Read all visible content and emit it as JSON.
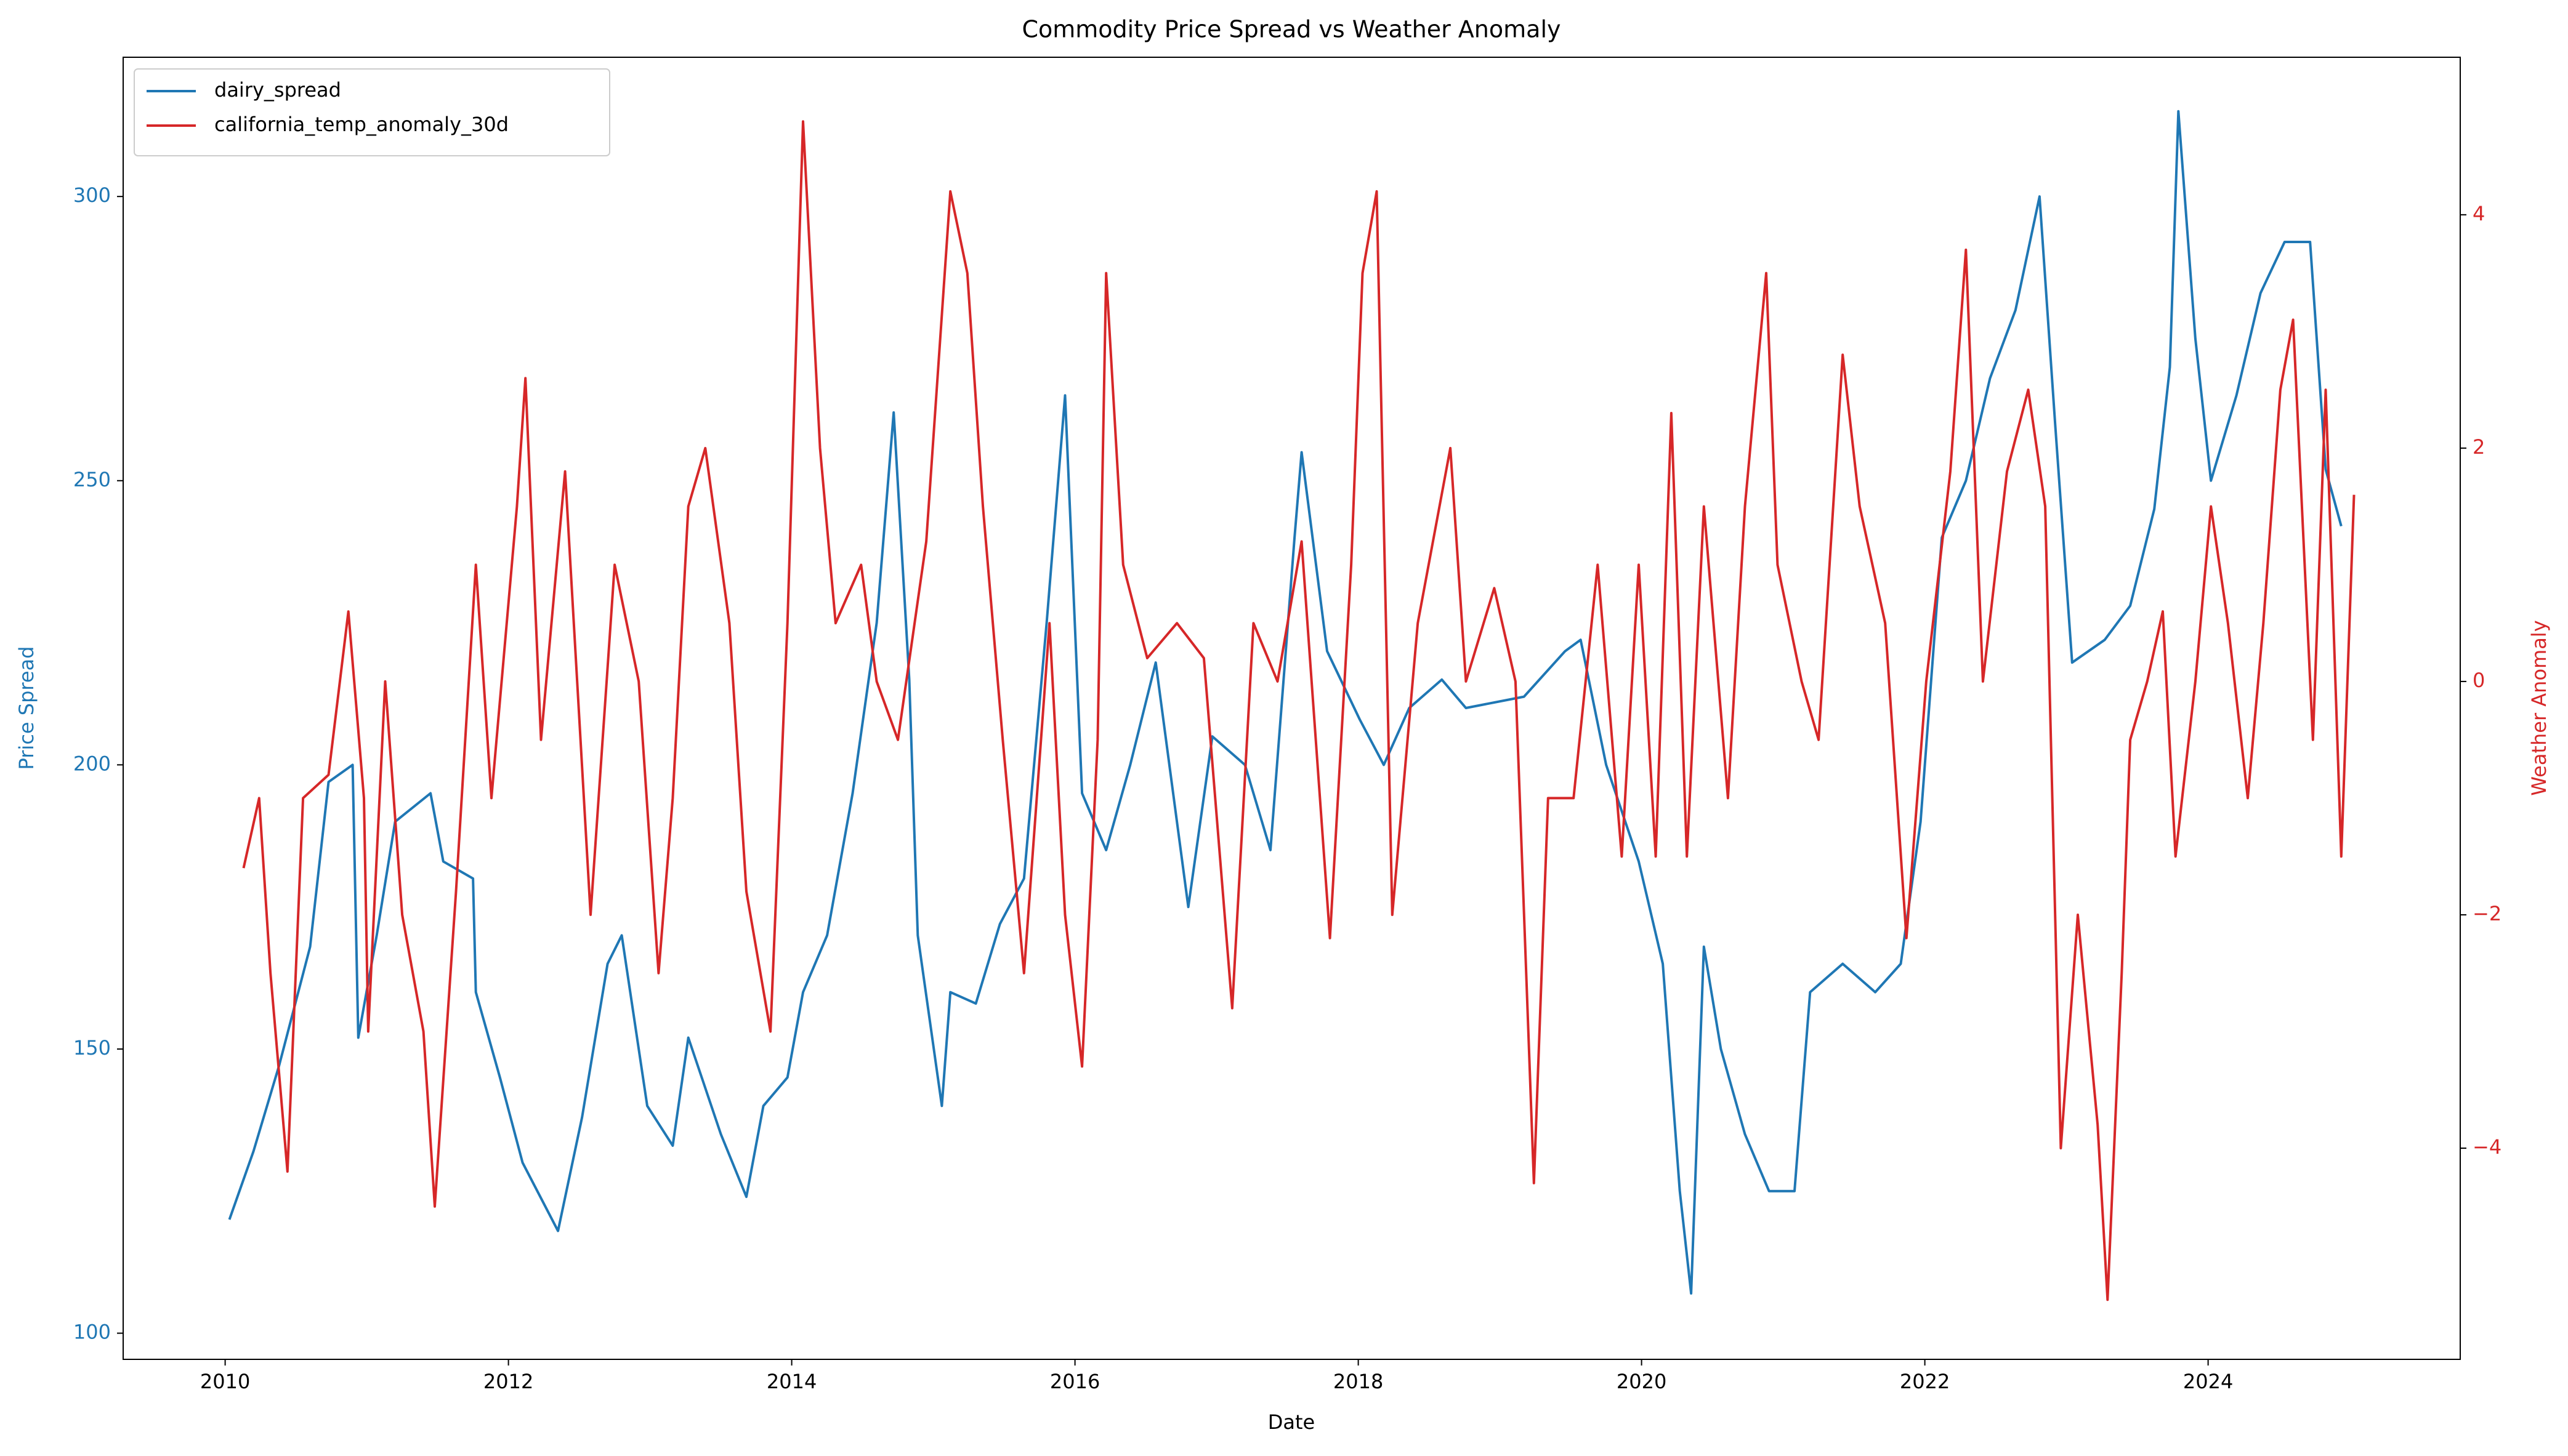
{
  "chart_data": {
    "type": "line",
    "title": "Commodity Price Spread vs Weather Anomaly",
    "x_label": "Date",
    "y_label": "Price Spread",
    "y2_label": "Weather Anomaly",
    "xlim": [
      2009.28,
      2025.78
    ],
    "xticks": [
      2010,
      2012,
      2014,
      2016,
      2018,
      2020,
      2022,
      2024
    ],
    "ylim": [
      95.4,
      324.5
    ],
    "yticks": [
      100,
      150,
      200,
      250,
      300
    ],
    "y2lim": [
      -5.81,
      5.35
    ],
    "y2ticks": [
      {
        "value": -4,
        "label": "−4"
      },
      {
        "value": -2,
        "label": "−2"
      },
      0,
      2,
      4
    ],
    "legend": "upper left",
    "grid": false,
    "series": [
      {
        "name": "dairy_spread",
        "color": "#1f77b4",
        "x": [
          2010.03,
          2010.2,
          2010.38,
          2010.6,
          2010.73,
          2010.9,
          2010.94,
          2011.07,
          2011.2,
          2011.45,
          2011.54,
          2011.75,
          2011.77,
          2011.94,
          2012.1,
          2012.35,
          2012.52,
          2012.7,
          2012.8,
          2012.98,
          2013.16,
          2013.27,
          2013.5,
          2013.68,
          2013.8,
          2013.97,
          2014.08,
          2014.25,
          2014.43,
          2014.6,
          2014.72,
          2014.83,
          2014.89,
          2015.06,
          2015.12,
          2015.3,
          2015.47,
          2015.64,
          2015.8,
          2015.93,
          2016.05,
          2016.22,
          2016.39,
          2016.57,
          2016.8,
          2016.97,
          2017.2,
          2017.38,
          2017.55,
          2017.6,
          2017.78,
          2018.01,
          2018.18,
          2018.36,
          2018.59,
          2018.76,
          2019.17,
          2019.46,
          2019.57,
          2019.75,
          2019.98,
          2020.15,
          2020.27,
          2020.35,
          2020.44,
          2020.56,
          2020.73,
          2020.9,
          2021.08,
          2021.19,
          2021.42,
          2021.65,
          2021.83,
          2021.97,
          2022.12,
          2022.29,
          2022.46,
          2022.64,
          2022.81,
          2022.92,
          2023.04,
          2023.27,
          2023.45,
          2023.62,
          2023.73,
          2023.79,
          2023.91,
          2024.02,
          2024.2,
          2024.37,
          2024.54,
          2024.72,
          2024.83,
          2024.94
        ],
        "values": [
          120,
          132,
          147,
          168,
          197,
          200,
          152,
          170,
          190,
          195,
          183,
          180,
          160,
          145,
          130,
          118,
          138,
          165,
          170,
          140,
          133,
          152,
          135,
          124,
          140,
          145,
          160,
          170,
          195,
          225,
          262,
          215,
          170,
          140,
          160,
          158,
          172,
          180,
          225,
          265,
          195,
          185,
          200,
          218,
          175,
          205,
          200,
          185,
          240,
          255,
          220,
          208,
          200,
          210,
          215,
          210,
          212,
          220,
          222,
          200,
          183,
          165,
          125,
          107,
          168,
          150,
          135,
          125,
          125,
          160,
          165,
          160,
          165,
          190,
          240,
          250,
          268,
          280,
          300,
          260,
          218,
          222,
          228,
          245,
          270,
          315,
          275,
          250,
          265,
          283,
          292,
          292,
          252,
          242
        ]
      },
      {
        "name": "california_temp_anomaly_30d",
        "color": "#d62728",
        "axis": "y2",
        "x": [
          2010.13,
          2010.24,
          2010.32,
          2010.44,
          2010.55,
          2010.73,
          2010.87,
          2010.98,
          2011.01,
          2011.13,
          2011.25,
          2011.4,
          2011.48,
          2011.63,
          2011.77,
          2011.88,
          2012.06,
          2012.12,
          2012.23,
          2012.4,
          2012.58,
          2012.75,
          2012.92,
          2013.06,
          2013.16,
          2013.27,
          2013.39,
          2013.56,
          2013.68,
          2013.85,
          2013.97,
          2014.08,
          2014.2,
          2014.31,
          2014.49,
          2014.6,
          2014.75,
          2014.95,
          2015.12,
          2015.24,
          2015.35,
          2015.49,
          2015.64,
          2015.82,
          2015.93,
          2016.05,
          2016.16,
          2016.22,
          2016.34,
          2016.51,
          2016.72,
          2016.91,
          2017.11,
          2017.26,
          2017.43,
          2017.6,
          2017.8,
          2017.95,
          2018.03,
          2018.13,
          2018.24,
          2018.42,
          2018.65,
          2018.76,
          2018.96,
          2019.11,
          2019.24,
          2019.34,
          2019.52,
          2019.69,
          2019.86,
          2019.98,
          2020.1,
          2020.21,
          2020.32,
          2020.44,
          2020.61,
          2020.73,
          2020.88,
          2020.96,
          2021.13,
          2021.25,
          2021.42,
          2021.54,
          2021.72,
          2021.87,
          2022.01,
          2022.18,
          2022.29,
          2022.41,
          2022.58,
          2022.73,
          2022.85,
          2022.96,
          2023.08,
          2023.22,
          2023.29,
          2023.39,
          2023.45,
          2023.57,
          2023.68,
          2023.77,
          2023.91,
          2024.02,
          2024.14,
          2024.28,
          2024.39,
          2024.51,
          2024.6,
          2024.74,
          2024.83,
          2024.94,
          2025.03
        ],
        "values": [
          -1.6,
          -1.0,
          -2.5,
          -4.2,
          -1.0,
          -0.8,
          0.6,
          -1.0,
          -3.0,
          0.0,
          -2.0,
          -3.0,
          -4.5,
          -1.8,
          1.0,
          -1.0,
          1.5,
          2.6,
          -0.5,
          1.8,
          -2.0,
          1.0,
          0.0,
          -2.5,
          -1.0,
          1.5,
          2.0,
          0.5,
          -1.8,
          -3.0,
          0.5,
          4.8,
          2.0,
          0.5,
          1.0,
          0.0,
          -0.5,
          1.2,
          4.2,
          3.5,
          1.5,
          -0.5,
          -2.5,
          0.5,
          -2.0,
          -3.3,
          -0.5,
          3.5,
          1.0,
          0.2,
          0.5,
          0.2,
          -2.8,
          0.5,
          0.0,
          1.2,
          -2.2,
          1.0,
          3.5,
          4.2,
          -2.0,
          0.5,
          2.0,
          0.0,
          0.8,
          0.0,
          -4.3,
          -1.0,
          -1.0,
          1.0,
          -1.5,
          1.0,
          -1.5,
          2.3,
          -1.5,
          1.5,
          -1.0,
          1.5,
          3.5,
          1.0,
          0.0,
          -0.5,
          2.8,
          1.5,
          0.5,
          -2.2,
          0.0,
          1.8,
          3.7,
          0.0,
          1.8,
          2.5,
          1.5,
          -4.0,
          -2.0,
          -3.8,
          -5.3,
          -2.5,
          -0.5,
          0.0,
          0.6,
          -1.5,
          0.0,
          1.5,
          0.5,
          -1.0,
          0.5,
          2.5,
          3.1,
          -0.5,
          2.5,
          -1.5,
          1.6
        ]
      }
    ]
  }
}
